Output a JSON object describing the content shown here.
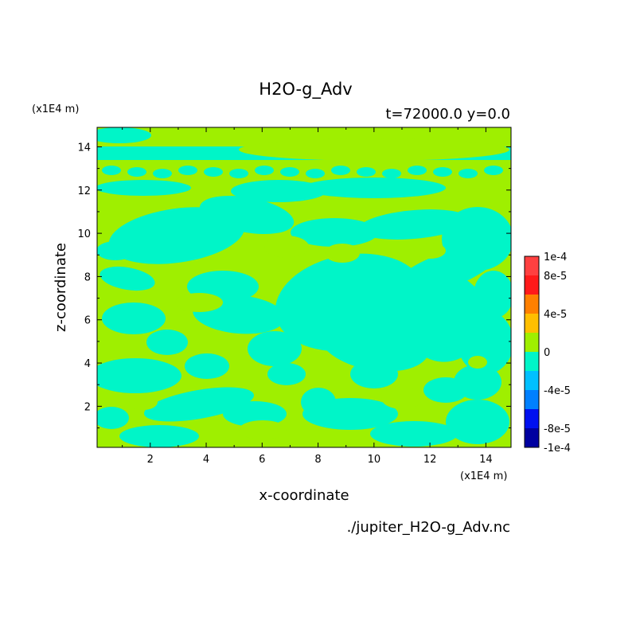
{
  "chart_data": {
    "type": "heatmap",
    "title": "H2O-g_Adv",
    "subtitle": "t=72000.0 y=0.0",
    "xlabel": "x-coordinate",
    "ylabel": "z-coordinate",
    "x_unit": "(x1E4 m)",
    "y_unit": "(x1E4 m)",
    "xlim": [
      0.1,
      14.9
    ],
    "ylim": [
      0.1,
      14.9
    ],
    "x_ticks": [
      "2",
      "4",
      "6",
      "8",
      "10",
      "12",
      "14"
    ],
    "y_ticks": [
      "2",
      "4",
      "6",
      "8",
      "10",
      "12",
      "14"
    ],
    "x_tick_values": [
      2,
      4,
      6,
      8,
      10,
      12,
      14
    ],
    "y_tick_values": [
      2,
      4,
      6,
      8,
      10,
      12,
      14
    ],
    "colorbar": {
      "min": -0.0001,
      "max": 0.0001,
      "labels": [
        "1e-4",
        "8e-5",
        "4e-5",
        "0",
        "-4e-5",
        "-8e-5",
        "-1e-4"
      ],
      "label_values": [
        0.0001,
        8e-05,
        4e-05,
        0,
        -4e-05,
        -8e-05,
        -0.0001
      ],
      "levels": [
        {
          "from": 8e-05,
          "to": 0.0001,
          "color": "#ff4040"
        },
        {
          "from": 6e-05,
          "to": 8e-05,
          "color": "#ff1a1a"
        },
        {
          "from": 4e-05,
          "to": 6e-05,
          "color": "#ff8000"
        },
        {
          "from": 2e-05,
          "to": 4e-05,
          "color": "#ffbf00"
        },
        {
          "from": 0,
          "to": 2e-05,
          "color": "#9fef00"
        },
        {
          "from": -2e-05,
          "to": 0,
          "color": "#00f5c8"
        },
        {
          "from": -4e-05,
          "to": -2e-05,
          "color": "#00c0ff"
        },
        {
          "from": -6e-05,
          "to": -4e-05,
          "color": "#0080ff"
        },
        {
          "from": -8e-05,
          "to": -6e-05,
          "color": "#0010f0"
        },
        {
          "from": -0.0001,
          "to": -8e-05,
          "color": "#0000a0"
        }
      ]
    },
    "field_colors": {
      "positive": "#9fef00",
      "negative": "#00f5c8"
    },
    "source_file": "./jupiter_H2O-g_Adv.nc"
  }
}
